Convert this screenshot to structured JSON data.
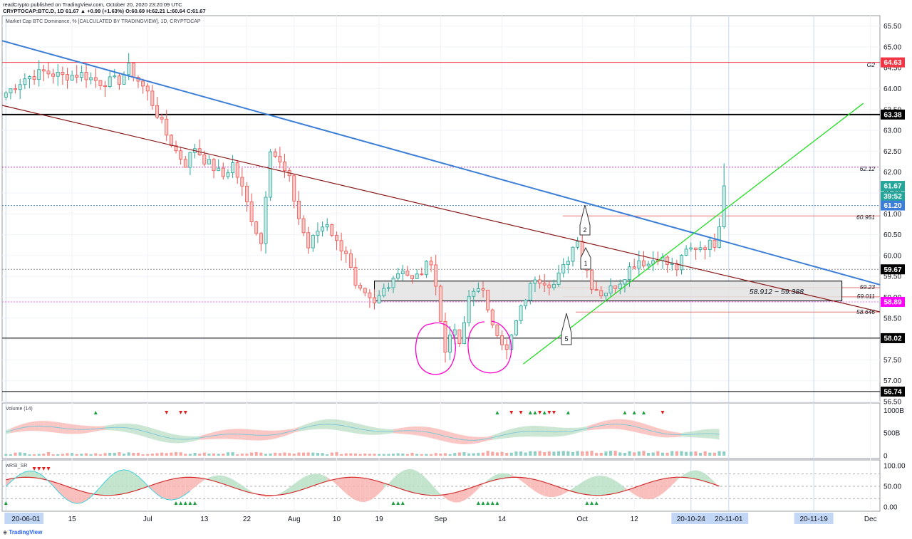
{
  "header": {
    "line1": "readCrypto published on TradingView.com, October 20, 2020 23:20:09 UTC",
    "line2": "CRYPTOCAP:BTC.D, 1D 61.67 ▲ +0.99 (+1.63%) O:60.69 H:62.21 L:60.64 C:61.67"
  },
  "chart_title": "Market Cap BTC Dominance, % [CALCULATED BY TRADINGVIEW], 1D, CRYPTOCAP",
  "watermark": "TradingView",
  "panes": {
    "volume_title": "Volume (14)",
    "rsi_title": "wRSI_SR"
  },
  "colors": {
    "up": "#26a69a",
    "up_fill": "#cde9e4",
    "down": "#ef5350",
    "down_fill": "#f8c9c6",
    "trend_blue": "#3d7fd8",
    "trend_red": "#8b1a1a",
    "trend_green": "#22dd22",
    "marker": "#ff00cc",
    "price_badge": "#26a69a"
  },
  "annotations": {
    "box_label": "58.912 ~ 59.388",
    "h_62_12": "62.12",
    "h_60_951": "60.951",
    "h_59_23": "59.23",
    "h_59_011": "59.011",
    "h_58_646": "58.646",
    "g2": "G2",
    "callout_1": "1",
    "callout_2": "2",
    "callout_5": "5"
  },
  "axis_badges": [
    {
      "text": "64.63",
      "value": 64.63,
      "bg": "#f23645",
      "fg": "#ffffff"
    },
    {
      "text": "63.38",
      "value": 63.38,
      "bg": "#000000",
      "fg": "#ffffff"
    },
    {
      "text": "61.67",
      "value": 61.67,
      "bg": "#26a69a",
      "fg": "#ffffff"
    },
    {
      "text": "39:52",
      "value": 61.42,
      "bg": "#26a69a",
      "fg": "#ffffff"
    },
    {
      "text": "61.20",
      "value": 61.2,
      "bg": "#3d7fd8",
      "fg": "#ffffff"
    },
    {
      "text": "59.67",
      "value": 59.67,
      "bg": "#000000",
      "fg": "#ffffff"
    },
    {
      "text": "58.89",
      "value": 58.89,
      "bg": "#ff00ff",
      "fg": "#ffffff"
    },
    {
      "text": "58.02",
      "value": 58.02,
      "bg": "#000000",
      "fg": "#ffffff"
    },
    {
      "text": "56.74",
      "value": 56.74,
      "bg": "#000000",
      "fg": "#ffffff"
    }
  ],
  "chart_data": {
    "type": "candlestick",
    "symbol": "CRYPTOCAP:BTC.D",
    "interval": "1D",
    "ylim": [
      56.5,
      65.75
    ],
    "y_ticks": [
      "65.50",
      "65.00",
      "64.50",
      "64.00",
      "63.50",
      "63.00",
      "62.50",
      "62.00",
      "61.50",
      "61.00",
      "60.50",
      "60.00",
      "59.50",
      "59.00",
      "58.50",
      "58.00",
      "57.50",
      "57.00",
      "56.50"
    ],
    "x_ticks": [
      {
        "label": "20-06-01",
        "day": 0,
        "highlight": true
      },
      {
        "label": "15",
        "day": 14
      },
      {
        "label": "Jul",
        "day": 30
      },
      {
        "label": "13",
        "day": 42
      },
      {
        "label": "22",
        "day": 51
      },
      {
        "label": "Aug",
        "day": 61
      },
      {
        "label": "10",
        "day": 70
      },
      {
        "label": "19",
        "day": 79
      },
      {
        "label": "Sep",
        "day": 92
      },
      {
        "label": "14",
        "day": 105
      },
      {
        "label": "Oct",
        "day": 122
      },
      {
        "label": "12",
        "day": 133
      },
      {
        "label": "20-10-24",
        "day": 145,
        "highlight": true
      },
      {
        "label": "20-11-01",
        "day": 153,
        "highlight": true
      },
      {
        "label": "20-11-19",
        "day": 171,
        "highlight": true
      },
      {
        "label": "Dec",
        "day": 183
      }
    ],
    "anchors": [
      [
        0,
        63.9
      ],
      [
        4,
        64.25
      ],
      [
        8,
        64.4
      ],
      [
        12,
        64.3
      ],
      [
        16,
        64.35
      ],
      [
        20,
        64.15
      ],
      [
        24,
        64.2
      ],
      [
        26,
        64.5
      ],
      [
        28,
        64.2
      ],
      [
        30,
        63.9
      ],
      [
        32,
        63.4
      ],
      [
        34,
        62.9
      ],
      [
        36,
        62.5
      ],
      [
        38,
        62.2
      ],
      [
        40,
        62.6
      ],
      [
        42,
        62.3
      ],
      [
        44,
        62.1
      ],
      [
        46,
        61.9
      ],
      [
        48,
        62.2
      ],
      [
        50,
        61.6
      ],
      [
        52,
        60.9
      ],
      [
        54,
        60.3
      ],
      [
        55,
        61.5
      ],
      [
        56,
        62.6
      ],
      [
        58,
        62.2
      ],
      [
        60,
        61.8
      ],
      [
        62,
        60.9
      ],
      [
        64,
        60.2
      ],
      [
        66,
        60.6
      ],
      [
        68,
        60.8
      ],
      [
        70,
        60.3
      ],
      [
        72,
        60.1
      ],
      [
        74,
        59.2
      ],
      [
        76,
        59.0
      ],
      [
        78,
        58.8
      ],
      [
        80,
        59.2
      ],
      [
        82,
        59.5
      ],
      [
        84,
        59.7
      ],
      [
        86,
        59.4
      ],
      [
        88,
        59.6
      ],
      [
        90,
        59.9
      ],
      [
        91,
        59.3
      ],
      [
        92,
        58.4
      ],
      [
        93,
        57.7
      ],
      [
        94,
        58.2
      ],
      [
        95,
        58.1
      ],
      [
        96,
        57.9
      ],
      [
        97,
        58.3
      ],
      [
        98,
        59.0
      ],
      [
        100,
        59.3
      ],
      [
        101,
        59.1
      ],
      [
        102,
        58.6
      ],
      [
        104,
        58.2
      ],
      [
        106,
        57.7
      ],
      [
        108,
        58.4
      ],
      [
        110,
        59.0
      ],
      [
        112,
        59.5
      ],
      [
        114,
        59.4
      ],
      [
        116,
        59.3
      ],
      [
        118,
        59.7
      ],
      [
        120,
        60.2
      ],
      [
        121,
        60.45
      ],
      [
        122,
        60.0
      ],
      [
        124,
        59.3
      ],
      [
        126,
        59.1
      ],
      [
        128,
        59.2
      ],
      [
        130,
        59.4
      ],
      [
        132,
        59.7
      ],
      [
        134,
        59.9
      ],
      [
        136,
        59.8
      ],
      [
        138,
        60.0
      ],
      [
        140,
        59.8
      ],
      [
        142,
        59.7
      ],
      [
        144,
        60.1
      ],
      [
        146,
        60.2
      ],
      [
        148,
        60.25
      ],
      [
        150,
        60.3
      ],
      [
        151,
        60.69
      ]
    ],
    "last_candle": {
      "open": 60.69,
      "high": 62.21,
      "low": 60.64,
      "close": 61.67
    },
    "volume_pane": {
      "y_ticks": [
        "1000B",
        "500B",
        "0"
      ],
      "ylim": [
        0,
        1100
      ]
    },
    "rsi_pane": {
      "y_ticks": [
        "100.00",
        "50.00",
        "0.00"
      ],
      "ylim": [
        -5,
        105
      ],
      "levels": [
        80,
        50,
        20
      ]
    },
    "horizontal_levels": [
      {
        "value": 64.63,
        "color": "#f23645",
        "width": 1
      },
      {
        "value": 63.38,
        "color": "#000000",
        "width": 2
      },
      {
        "value": 62.12,
        "color": "#cc33cc",
        "dash": true
      },
      {
        "value": 61.2,
        "color": "#3d7fd8",
        "dash": true
      },
      {
        "value": 59.67,
        "color": "#999999",
        "dash": true
      },
      {
        "value": 58.89,
        "color": "#ff66ff",
        "dash": true
      },
      {
        "value": 58.02,
        "color": "#000000",
        "width": 1
      },
      {
        "value": 56.74,
        "color": "#000000",
        "width": 1
      }
    ],
    "zone": {
      "from": 58.912,
      "to": 59.388,
      "day_start": 78,
      "day_end": 186
    }
  }
}
